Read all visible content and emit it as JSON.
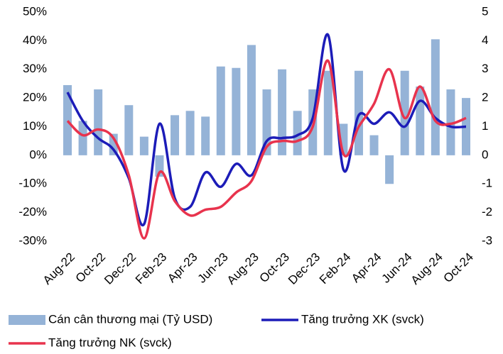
{
  "chart_data": {
    "type": "bar_line",
    "categories": [
      "Aug-22",
      null,
      "Oct-22",
      null,
      "Dec-22",
      null,
      "Feb-23",
      null,
      "Apr-23",
      null,
      "Jun-23",
      null,
      "Aug-23",
      null,
      "Oct-23",
      null,
      "Dec-23",
      null,
      "Feb-24",
      null,
      "Apr-24",
      null,
      "Jun-24",
      null,
      "Aug-24",
      null,
      "Oct-24"
    ],
    "series": [
      {
        "name": "Cán cân thương mại (Tỷ USD)",
        "type": "bar",
        "axis": "y2",
        "color": "#95b3d7",
        "values": [
          2.45,
          1.2,
          2.3,
          0.75,
          1.75,
          0.65,
          -0.75,
          1.4,
          1.55,
          1.35,
          3.1,
          3.05,
          3.85,
          2.3,
          3.0,
          1.55,
          2.3,
          2.95,
          1.1,
          2.95,
          0.7,
          -1.0,
          2.95,
          2.4,
          4.05,
          2.3,
          2.0
        ]
      },
      {
        "name": "Tăng trưởng XK (svck)",
        "type": "line",
        "color": "#1c1cb8",
        "values": [
          22,
          12,
          6,
          2,
          -8,
          -24,
          11,
          -15,
          -18,
          -6,
          -11,
          -3,
          -7,
          5,
          6,
          7,
          13,
          42,
          -5,
          14,
          11,
          15,
          10,
          19,
          13,
          10,
          10
        ]
      },
      {
        "name": "Tăng trưởng NK (svck)",
        "type": "line",
        "color": "#e8334d",
        "values": [
          12,
          7,
          9,
          6,
          -7,
          -29,
          -6,
          -16,
          -21,
          -19,
          -18,
          -13,
          -9,
          3,
          5,
          5,
          10,
          33,
          0.5,
          10,
          18,
          30,
          13,
          24,
          12,
          11,
          13
        ]
      }
    ],
    "ylim": [
      -30,
      50
    ],
    "yticks": [
      {
        "value": 50,
        "label": "50%"
      },
      {
        "value": 40,
        "label": "40%"
      },
      {
        "value": 30,
        "label": "30%"
      },
      {
        "value": 20,
        "label": "20%"
      },
      {
        "value": 10,
        "label": "10%"
      },
      {
        "value": 0,
        "label": "0%"
      },
      {
        "value": -10,
        "label": "-10%"
      },
      {
        "value": -20,
        "label": "-20%"
      },
      {
        "value": -30,
        "label": "-30%"
      }
    ],
    "y2lim": [
      -3,
      5
    ],
    "y2ticks": [
      5,
      4,
      3,
      2,
      1,
      0,
      -1,
      -2,
      -3
    ],
    "grid": false
  }
}
